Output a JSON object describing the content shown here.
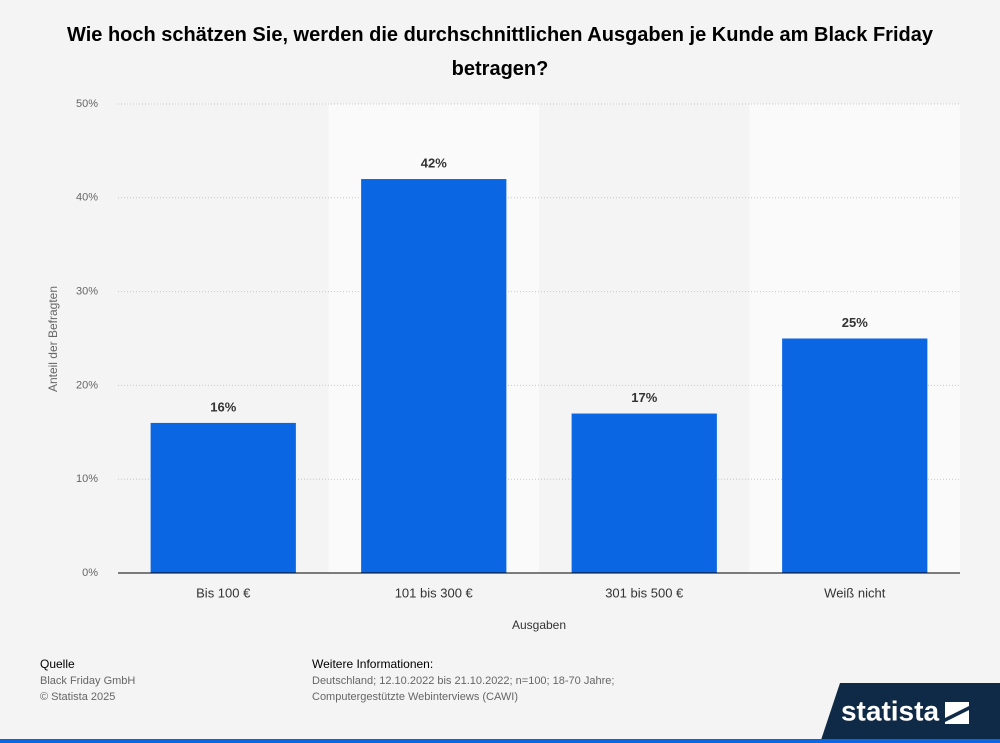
{
  "chart_data": {
    "type": "bar",
    "title": "Wie hoch schätzen Sie, werden die durchschnittlichen Ausgaben je Kunde am Black Friday betragen?",
    "x_label": "Ausgaben",
    "y_label": "Anteil der Befragten",
    "categories": [
      "Bis 100 €",
      "101 bis 300 €",
      "301 bis 500 €",
      "Weiß nicht"
    ],
    "values": [
      16,
      42,
      17,
      25
    ],
    "value_labels": [
      "16%",
      "42%",
      "17%",
      "25%"
    ],
    "color": "#0b66e4",
    "ylim": [
      0,
      50
    ],
    "yticks": [
      {
        "value": 0,
        "label": "0%"
      },
      {
        "value": 10,
        "label": "10%"
      },
      {
        "value": 20,
        "label": "20%"
      },
      {
        "value": 30,
        "label": "30%"
      },
      {
        "value": 40,
        "label": "40%"
      },
      {
        "value": 50,
        "label": "50%"
      }
    ],
    "grid": true
  },
  "footer": {
    "source_title": "Quelle",
    "source": "Black Friday GmbH",
    "copyright": "© Statista 2025",
    "info_title": "Weitere Informationen:",
    "info_lines": [
      "Deutschland; 12.10.2022 bis 21.10.2022; n=100; 18-70 Jahre;",
      "Computergestützte Webinterviews (CAWI)"
    ],
    "brand": "statista"
  }
}
